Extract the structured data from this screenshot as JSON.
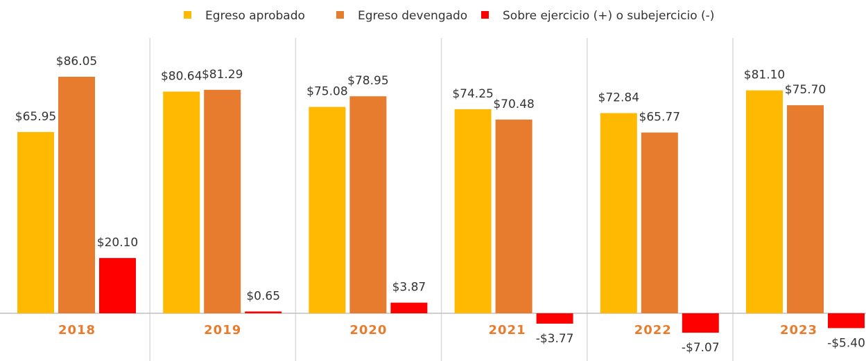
{
  "chart_data": {
    "type": "bar",
    "categories": [
      "2018",
      "2019",
      "2020",
      "2021",
      "2022",
      "2023"
    ],
    "series": [
      {
        "name": "Egreso aprobado",
        "color": "#ffb900",
        "values": [
          65.95,
          80.64,
          75.08,
          74.25,
          72.84,
          81.1
        ],
        "value_labels": [
          "$65.95",
          "$80.64",
          "$75.08",
          "$74.25",
          "$72.84",
          "$81.10"
        ]
      },
      {
        "name": "Egreso devengado",
        "color": "#e87c2e",
        "values": [
          86.05,
          81.29,
          78.95,
          70.48,
          65.77,
          75.7
        ],
        "value_labels": [
          "$86.05",
          "$81.29",
          "$78.95",
          "$70.48",
          "$65.77",
          "$75.70"
        ]
      },
      {
        "name": "Sobre ejercicio (+) o subejercicio (-)",
        "color": "#ff0000",
        "values": [
          20.1,
          0.65,
          3.87,
          -3.77,
          -7.07,
          -5.4
        ],
        "value_labels": [
          "$20.10",
          "$0.65",
          "$3.87",
          "-$3.77",
          "-$7.07",
          "-$5.40"
        ]
      }
    ],
    "legend": "top"
  }
}
